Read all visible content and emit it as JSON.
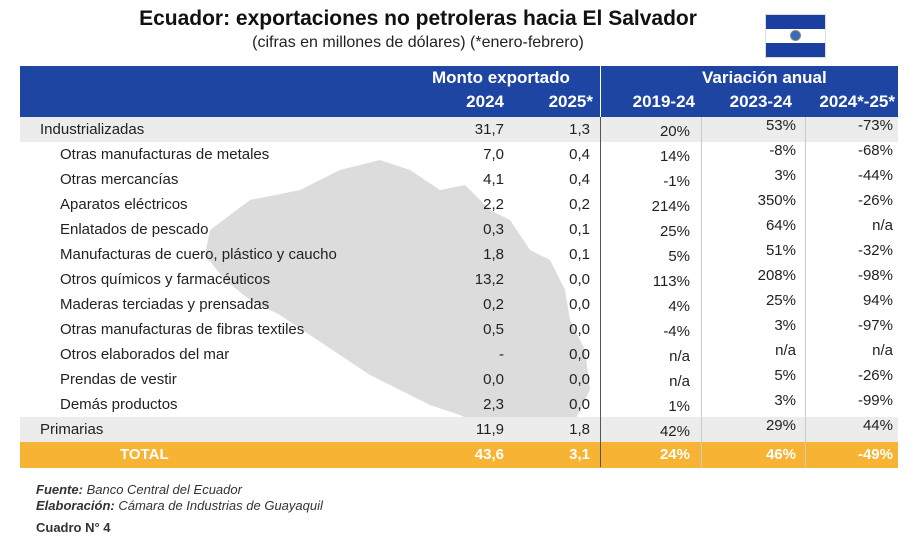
{
  "title": "Ecuador: exportaciones no petroleras hacia El Salvador",
  "subtitle": "(cifras en millones de dólares) (*enero-febrero)",
  "colors": {
    "header": "#1f45a3",
    "total": "#f7b334",
    "shade": "#ececec",
    "map": "#dcdcdc"
  },
  "header": {
    "group1": "Monto exportado",
    "group2": "Variación anual",
    "cols": [
      "2024",
      "2025*",
      "2019-24",
      "2023-24",
      "2024*-25*"
    ]
  },
  "rows": [
    {
      "label": "Industrializadas",
      "v": [
        "31,7",
        "1,3",
        "20%",
        "53%",
        "-73%"
      ]
    },
    {
      "label": "Otras manufacturas de metales",
      "v": [
        "7,0",
        "0,4",
        "14%",
        "-8%",
        "-68%"
      ]
    },
    {
      "label": "Otras mercancías",
      "v": [
        "4,1",
        "0,4",
        "-1%",
        "3%",
        "-44%"
      ]
    },
    {
      "label": "Aparatos eléctricos",
      "v": [
        "2,2",
        "0,2",
        "214%",
        "350%",
        "-26%"
      ]
    },
    {
      "label": "Enlatados de pescado",
      "v": [
        "0,3",
        "0,1",
        "25%",
        "64%",
        "n/a"
      ]
    },
    {
      "label": "Manufacturas de cuero, plástico y caucho",
      "v": [
        "1,8",
        "0,1",
        "5%",
        "51%",
        "-32%"
      ]
    },
    {
      "label": "Otros químicos y farmacéuticos",
      "v": [
        "13,2",
        "0,0",
        "113%",
        "208%",
        "-98%"
      ]
    },
    {
      "label": "Maderas terciadas y prensadas",
      "v": [
        "0,2",
        "0,0",
        "4%",
        "25%",
        "94%"
      ]
    },
    {
      "label": "Otras manufacturas de fibras textiles",
      "v": [
        "0,5",
        "0,0",
        "-4%",
        "3%",
        "-97%"
      ]
    },
    {
      "label": "Otros elaborados del mar",
      "v": [
        "-",
        "0,0",
        "n/a",
        "n/a",
        "n/a"
      ]
    },
    {
      "label": "Prendas de vestir",
      "v": [
        "0,0",
        "0,0",
        "n/a",
        "5%",
        "-26%"
      ]
    },
    {
      "label": "Demás productos",
      "v": [
        "2,3",
        "0,0",
        "1%",
        "3%",
        "-99%"
      ]
    },
    {
      "label": "Primarias",
      "v": [
        "11,9",
        "1,8",
        "42%",
        "29%",
        "44%"
      ]
    }
  ],
  "total": {
    "label": "TOTAL",
    "v": [
      "43,6",
      "3,1",
      "24%",
      "46%",
      "-49%"
    ]
  },
  "footer": {
    "fuente_label": "Fuente:",
    "fuente": " Banco Central del Ecuador",
    "elaboracion_label": "Elaboración:",
    "elaboracion": " Cámara de Industrias de Guayaquil",
    "cuadro": "Cuadro N° 4"
  }
}
